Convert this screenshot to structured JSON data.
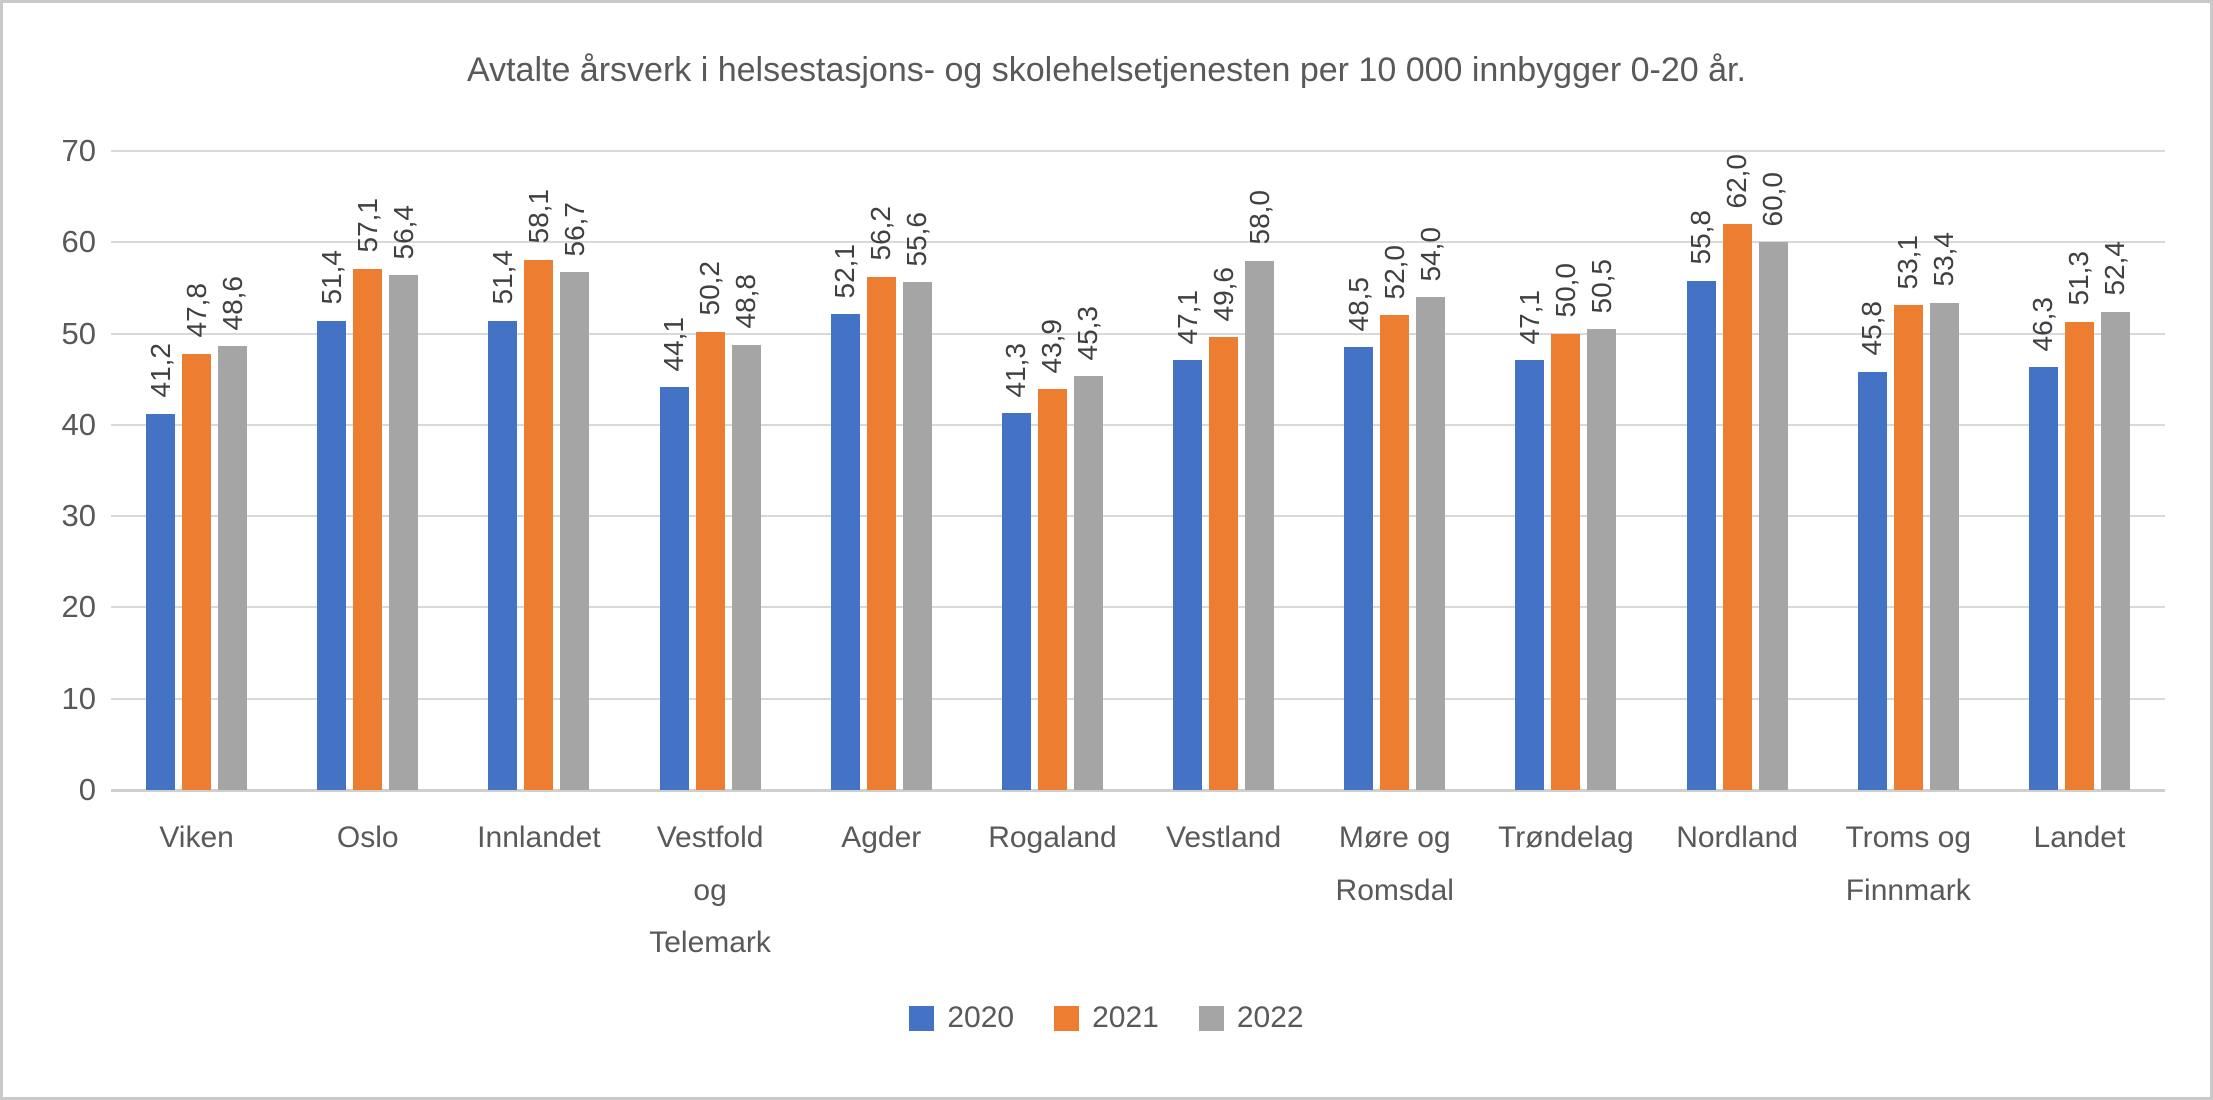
{
  "chart_data": {
    "type": "bar",
    "title": "Avtalte årsverk i helsestasjons- og skolehelsetjenesten per 10 000 innbygger 0-20 år.",
    "categories": [
      "Viken",
      "Oslo",
      "Innlandet",
      "Vestfold\nog\nTelemark",
      "Agder",
      "Rogaland",
      "Vestland",
      "Møre og\nRomsdal",
      "Trøndelag",
      "Nordland",
      "Troms og\nFinnmark",
      "Landet"
    ],
    "series": [
      {
        "name": "2020",
        "color": "#4472C4",
        "values": [
          41.2,
          51.4,
          51.4,
          44.1,
          52.1,
          41.3,
          47.1,
          48.5,
          47.1,
          55.8,
          45.8,
          46.3
        ]
      },
      {
        "name": "2021",
        "color": "#ED7D31",
        "values": [
          47.8,
          57.1,
          58.1,
          50.2,
          56.2,
          43.9,
          49.6,
          52.0,
          50.0,
          62.0,
          53.1,
          51.3
        ]
      },
      {
        "name": "2022",
        "color": "#A5A5A5",
        "values": [
          48.6,
          56.4,
          56.7,
          48.8,
          55.6,
          45.3,
          58.0,
          54.0,
          50.5,
          60.0,
          53.4,
          52.4
        ]
      }
    ],
    "y_ticks": [
      0,
      10,
      20,
      30,
      40,
      50,
      60,
      70
    ],
    "ylim": [
      0,
      70
    ],
    "grid": true,
    "legend_position": "bottom",
    "decimal_separator": ",",
    "data_labels_rotated": true
  },
  "style": {
    "gridline_color": "#d9d9d9",
    "axis_line_color": "#cfcfcf",
    "label_color": "#595959",
    "data_label_color": "#404040",
    "border_color": "#c9c9c9"
  }
}
